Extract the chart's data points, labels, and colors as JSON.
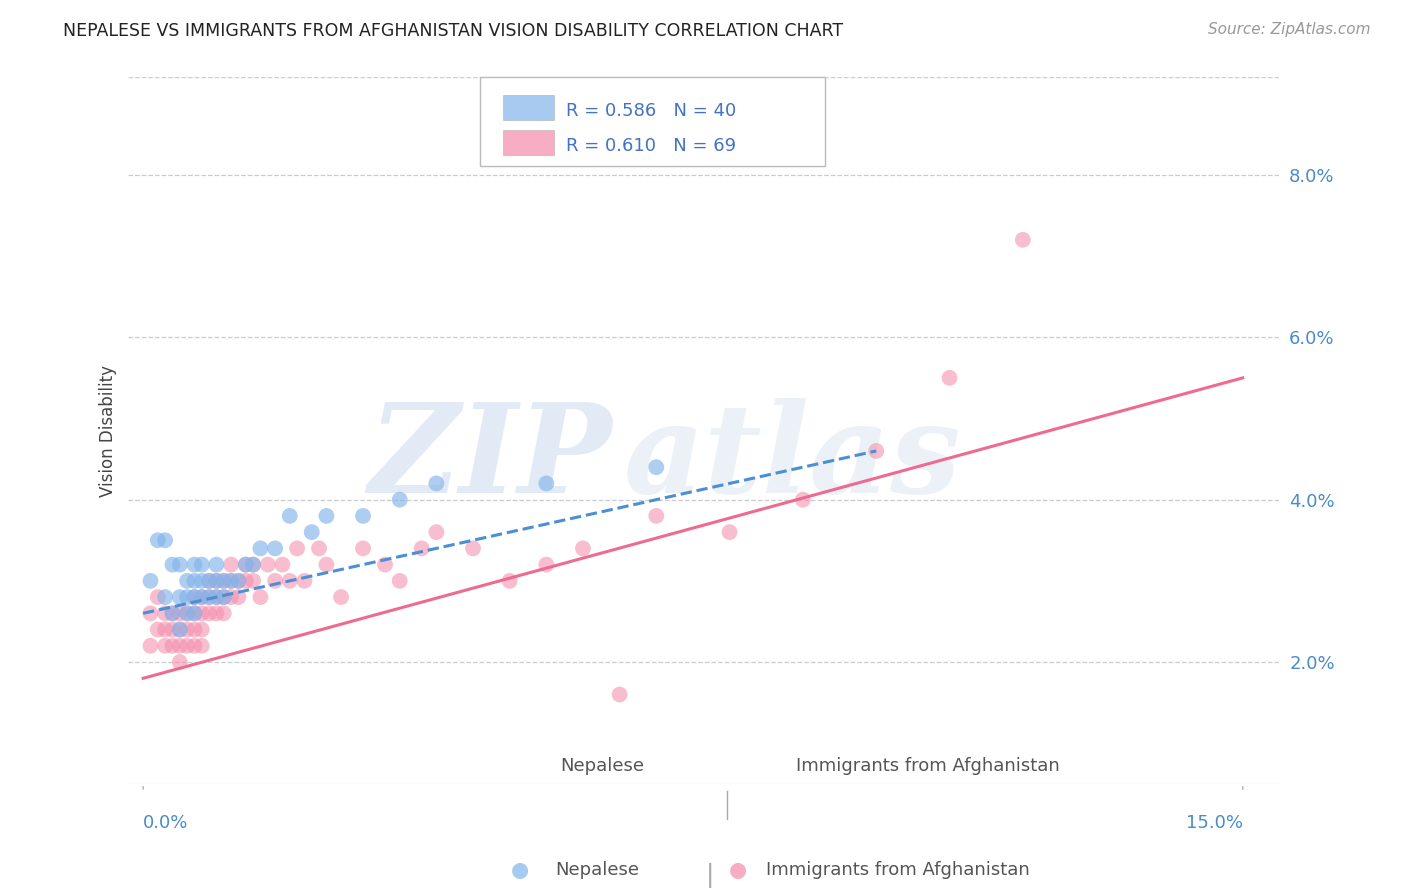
{
  "title": "NEPALESE VS IMMIGRANTS FROM AFGHANISTAN VISION DISABILITY CORRELATION CHART",
  "source": "Source: ZipAtlas.com",
  "ylabel": "Vision Disability",
  "ytick_labels": [
    "2.0%",
    "4.0%",
    "6.0%",
    "8.0%"
  ],
  "ytick_values": [
    0.02,
    0.04,
    0.06,
    0.08
  ],
  "xtick_labels": [
    "0.0%",
    "15.0%"
  ],
  "xtick_positions": [
    0.0,
    0.15
  ],
  "xlim": [
    -0.002,
    0.155
  ],
  "ylim": [
    0.005,
    0.092
  ],
  "watermark_text": "ZIP",
  "watermark_text2": "atlas",
  "nepalese_R": 0.586,
  "nepalese_N": 40,
  "afghanistan_R": 0.61,
  "afghanistan_N": 69,
  "nepalese_color": "#82B4EA",
  "afghanistan_color": "#F48AAA",
  "nepalese_line_color": "#4B8FD4",
  "afghanistan_line_color": "#EE6B90",
  "legend_box_color": "#dddddd",
  "legend_text_color": "#4472C4",
  "legend_R_color": "#4472C4",
  "legend_N_color": "#E05878",
  "nepalese_x": [
    0.001,
    0.002,
    0.003,
    0.003,
    0.004,
    0.004,
    0.005,
    0.005,
    0.005,
    0.006,
    0.006,
    0.006,
    0.007,
    0.007,
    0.007,
    0.007,
    0.008,
    0.008,
    0.008,
    0.009,
    0.009,
    0.01,
    0.01,
    0.01,
    0.011,
    0.011,
    0.012,
    0.013,
    0.014,
    0.015,
    0.016,
    0.018,
    0.02,
    0.023,
    0.025,
    0.03,
    0.035,
    0.04,
    0.055,
    0.07
  ],
  "nepalese_y": [
    0.03,
    0.035,
    0.035,
    0.028,
    0.032,
    0.026,
    0.032,
    0.028,
    0.024,
    0.03,
    0.026,
    0.028,
    0.032,
    0.028,
    0.03,
    0.026,
    0.03,
    0.032,
    0.028,
    0.03,
    0.028,
    0.032,
    0.028,
    0.03,
    0.03,
    0.028,
    0.03,
    0.03,
    0.032,
    0.032,
    0.034,
    0.034,
    0.038,
    0.036,
    0.038,
    0.038,
    0.04,
    0.042,
    0.042,
    0.044
  ],
  "afghanistan_x": [
    0.001,
    0.001,
    0.002,
    0.002,
    0.003,
    0.003,
    0.003,
    0.004,
    0.004,
    0.004,
    0.005,
    0.005,
    0.005,
    0.005,
    0.006,
    0.006,
    0.006,
    0.007,
    0.007,
    0.007,
    0.007,
    0.008,
    0.008,
    0.008,
    0.008,
    0.009,
    0.009,
    0.009,
    0.01,
    0.01,
    0.01,
    0.011,
    0.011,
    0.011,
    0.012,
    0.012,
    0.012,
    0.013,
    0.013,
    0.014,
    0.014,
    0.015,
    0.015,
    0.016,
    0.017,
    0.018,
    0.019,
    0.02,
    0.021,
    0.022,
    0.024,
    0.025,
    0.027,
    0.03,
    0.033,
    0.035,
    0.038,
    0.04,
    0.045,
    0.05,
    0.055,
    0.06,
    0.065,
    0.07,
    0.08,
    0.09,
    0.1,
    0.11,
    0.12
  ],
  "afghanistan_y": [
    0.026,
    0.022,
    0.028,
    0.024,
    0.026,
    0.024,
    0.022,
    0.026,
    0.024,
    0.022,
    0.026,
    0.024,
    0.022,
    0.02,
    0.026,
    0.024,
    0.022,
    0.028,
    0.026,
    0.024,
    0.022,
    0.028,
    0.026,
    0.024,
    0.022,
    0.03,
    0.028,
    0.026,
    0.03,
    0.028,
    0.026,
    0.03,
    0.028,
    0.026,
    0.03,
    0.028,
    0.032,
    0.03,
    0.028,
    0.032,
    0.03,
    0.032,
    0.03,
    0.028,
    0.032,
    0.03,
    0.032,
    0.03,
    0.034,
    0.03,
    0.034,
    0.032,
    0.028,
    0.034,
    0.032,
    0.03,
    0.034,
    0.036,
    0.034,
    0.03,
    0.032,
    0.034,
    0.016,
    0.038,
    0.036,
    0.04,
    0.046,
    0.055,
    0.072
  ],
  "nepalese_line_x0": 0.0,
  "nepalese_line_y0": 0.026,
  "nepalese_line_x1": 0.1,
  "nepalese_line_y1": 0.046,
  "afghanistan_line_x0": 0.0,
  "afghanistan_line_y0": 0.018,
  "afghanistan_line_x1": 0.15,
  "afghanistan_line_y1": 0.055
}
